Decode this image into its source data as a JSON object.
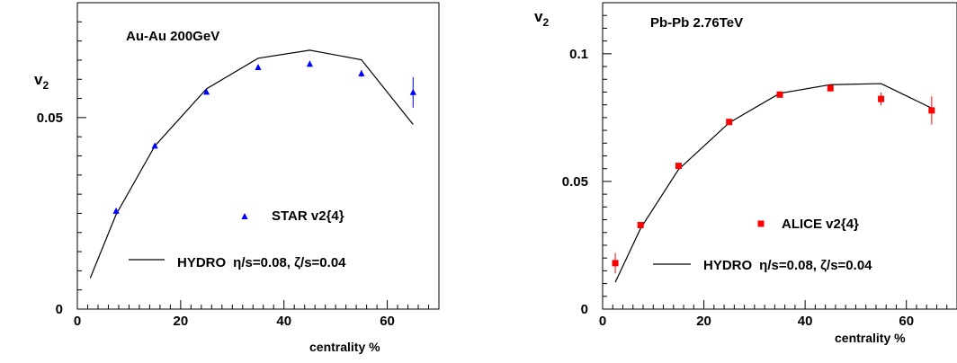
{
  "chart_data": [
    {
      "type": "scatter",
      "title": "Au-Au  200GeV",
      "ylabel": "v",
      "ylabel_sub": "2",
      "xlabel": "centrality    %",
      "xlim": [
        0,
        70
      ],
      "ylim": [
        0,
        0.08
      ],
      "xticks": [
        0,
        20,
        40,
        60
      ],
      "xtick_labels": [
        "0",
        "20",
        "40",
        "60"
      ],
      "yticks": [
        0,
        0.05
      ],
      "ytick_labels": [
        "0",
        "0.05"
      ],
      "marker_color": "#0000ff",
      "legend": {
        "data_label": "STAR  v2{4}",
        "model_label_prefix": "HYDRO",
        "model_label_params": "η/s=0.08, ζ/s=0.04"
      },
      "series": [
        {
          "name": "STAR  v2{4}",
          "marker": "triangle",
          "x": [
            7.5,
            15,
            25,
            35,
            45,
            55,
            65
          ],
          "y": [
            0.0256,
            0.0426,
            0.0567,
            0.0631,
            0.064,
            0.0615,
            0.0566
          ],
          "err": [
            0.0007,
            0.0007,
            0.0007,
            0.0007,
            0.0008,
            0.0009,
            0.004
          ]
        },
        {
          "name": "HYDRO  η/s=0.08, ζ/s=0.04",
          "line": true,
          "x": [
            2.5,
            7.5,
            15,
            25,
            35,
            45,
            55,
            65
          ],
          "y": [
            0.0081,
            0.0247,
            0.0426,
            0.0575,
            0.0655,
            0.0676,
            0.0651,
            0.0482
          ]
        }
      ]
    },
    {
      "type": "scatter",
      "title": "Pb-Pb  2.76TeV",
      "ylabel": "v",
      "ylabel_sub": "2",
      "xlabel": "centrality    %",
      "xlim": [
        0,
        70
      ],
      "ylim": [
        0,
        0.12
      ],
      "xticks": [
        0,
        20,
        40,
        60
      ],
      "xtick_labels": [
        "0",
        "20",
        "40",
        "60"
      ],
      "yticks": [
        0,
        0.05,
        0.1
      ],
      "ytick_labels": [
        "0",
        "0.05",
        "0.1"
      ],
      "marker_color": "#ff0000",
      "legend": {
        "data_label": "ALICE  v2{4}",
        "model_label_prefix": "HYDRO",
        "model_label_params": "η/s=0.08, ζ/s=0.04"
      },
      "series": [
        {
          "name": "ALICE  v2{4}",
          "marker": "square",
          "x": [
            2.5,
            7.5,
            15,
            25,
            35,
            45,
            55,
            65
          ],
          "y": [
            0.018,
            0.0329,
            0.0561,
            0.0733,
            0.084,
            0.0865,
            0.0823,
            0.0778
          ],
          "err": [
            0.004,
            0.001,
            0.001,
            0.001,
            0.0012,
            0.0013,
            0.0025,
            0.0055
          ]
        },
        {
          "name": "HYDRO  η/s=0.08, ζ/s=0.04",
          "line": true,
          "x": [
            2.5,
            7.5,
            15,
            25,
            35,
            45,
            55,
            65
          ],
          "y": [
            0.0105,
            0.0316,
            0.0547,
            0.073,
            0.0845,
            0.0879,
            0.0883,
            0.0787
          ]
        }
      ]
    }
  ]
}
